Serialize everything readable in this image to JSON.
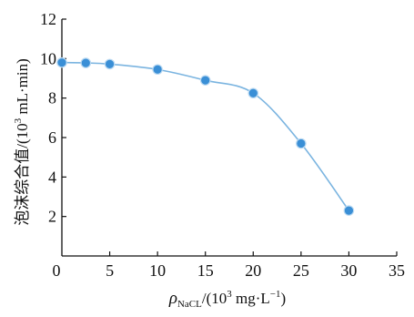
{
  "chart_data": {
    "type": "line",
    "title": "",
    "xlabel": {
      "symbol": "ρ",
      "subscript": "NaCL",
      "unit_open": "/(10",
      "unit_exp": "3",
      "unit_mid": " mg·L",
      "unit_exp2": "−1",
      "unit_close": ")"
    },
    "ylabel": {
      "text": "泡沫综合值/(10",
      "unit_exp": "3",
      "unit_rest": " mL·min)"
    },
    "xlim": [
      0,
      35
    ],
    "ylim": [
      0,
      12
    ],
    "x_ticks": [
      0,
      5,
      10,
      15,
      20,
      25,
      30,
      35
    ],
    "y_ticks": [
      2,
      4,
      6,
      8,
      10,
      12
    ],
    "y_tick_labels": [
      "2",
      "4",
      "6",
      "8",
      "10",
      "12"
    ],
    "x_tick_labels": [
      "0",
      "5",
      "10",
      "15",
      "20",
      "25",
      "30",
      "35"
    ],
    "origin_label": "0",
    "grid": false,
    "series": [
      {
        "x": [
          0,
          2.5,
          5,
          10,
          15,
          20,
          25,
          30
        ],
        "y": [
          9.8,
          9.78,
          9.72,
          9.45,
          8.9,
          8.25,
          5.7,
          2.3
        ],
        "color": "#7ab4e0",
        "marker_color": "#3a8fd6"
      }
    ]
  }
}
